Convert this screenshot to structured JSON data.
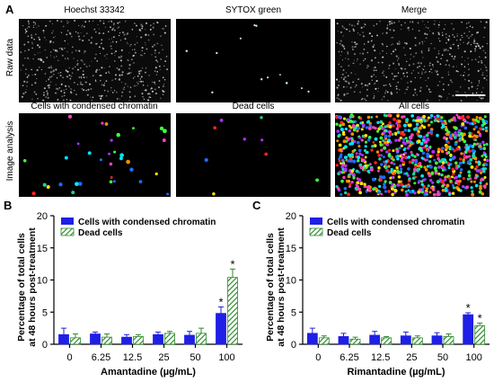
{
  "panel_a": {
    "letter": "A",
    "column_titles": [
      "Hoechst 33342",
      "SYTOX green",
      "Merge"
    ],
    "analysis_titles": [
      "Cells with condensed chromatin",
      "Dead cells",
      "All cells"
    ],
    "row_labels": [
      "Raw data",
      "Image analysis"
    ]
  },
  "legend": {
    "condensed": "Cells with condensed chromatin",
    "dead": "Dead cells"
  },
  "colors": {
    "condensed": "#1f1fe6",
    "dead_stripe": "#2e8b2e",
    "dead_bg": "#ffffff"
  },
  "chart_data": [
    {
      "panel": "B",
      "type": "bar",
      "xlabel": "Amantadine (µg/mL)",
      "ylabel": "Percentage of total cells at 48 hours post-treatment",
      "ylim": [
        0,
        20
      ],
      "yticks": [
        0,
        5,
        10,
        15,
        20
      ],
      "categories": [
        "0",
        "6.25",
        "12.5",
        "25",
        "50",
        "100"
      ],
      "series": [
        {
          "name": "Cells with condensed chromatin",
          "values": [
            1.5,
            1.6,
            1.1,
            1.5,
            1.4,
            4.8
          ],
          "errors": [
            1.0,
            0.3,
            0.4,
            0.4,
            0.6,
            1.0
          ],
          "significant": [
            false,
            false,
            false,
            false,
            false,
            true
          ]
        },
        {
          "name": "Dead cells",
          "values": [
            1.0,
            1.1,
            1.2,
            1.7,
            1.7,
            10.4
          ],
          "errors": [
            0.6,
            0.5,
            0.3,
            0.3,
            0.8,
            1.3
          ],
          "significant": [
            false,
            false,
            false,
            false,
            false,
            true
          ]
        }
      ],
      "significance_marker": "*",
      "legend_position": "top-left"
    },
    {
      "panel": "C",
      "type": "bar",
      "xlabel": "Rimantadine (µg/mL)",
      "ylabel": "Percentage of total cells at 48 hours post-treatment",
      "ylim": [
        0,
        20
      ],
      "yticks": [
        0,
        5,
        10,
        15,
        20
      ],
      "categories": [
        "0",
        "6.25",
        "12.5",
        "25",
        "50",
        "100"
      ],
      "series": [
        {
          "name": "Cells with condensed chromatin",
          "values": [
            1.7,
            1.2,
            1.4,
            1.3,
            1.3,
            4.6
          ],
          "errors": [
            0.8,
            0.5,
            0.6,
            0.6,
            0.5,
            0.3
          ],
          "significant": [
            false,
            false,
            false,
            false,
            false,
            true
          ]
        },
        {
          "name": "Dead cells",
          "values": [
            1.0,
            0.8,
            1.0,
            1.0,
            1.2,
            2.9
          ],
          "errors": [
            0.3,
            0.3,
            0.2,
            0.3,
            0.4,
            0.4
          ],
          "significant": [
            false,
            false,
            false,
            false,
            false,
            true
          ]
        }
      ],
      "significance_marker": "*",
      "legend_position": "top-left"
    }
  ]
}
